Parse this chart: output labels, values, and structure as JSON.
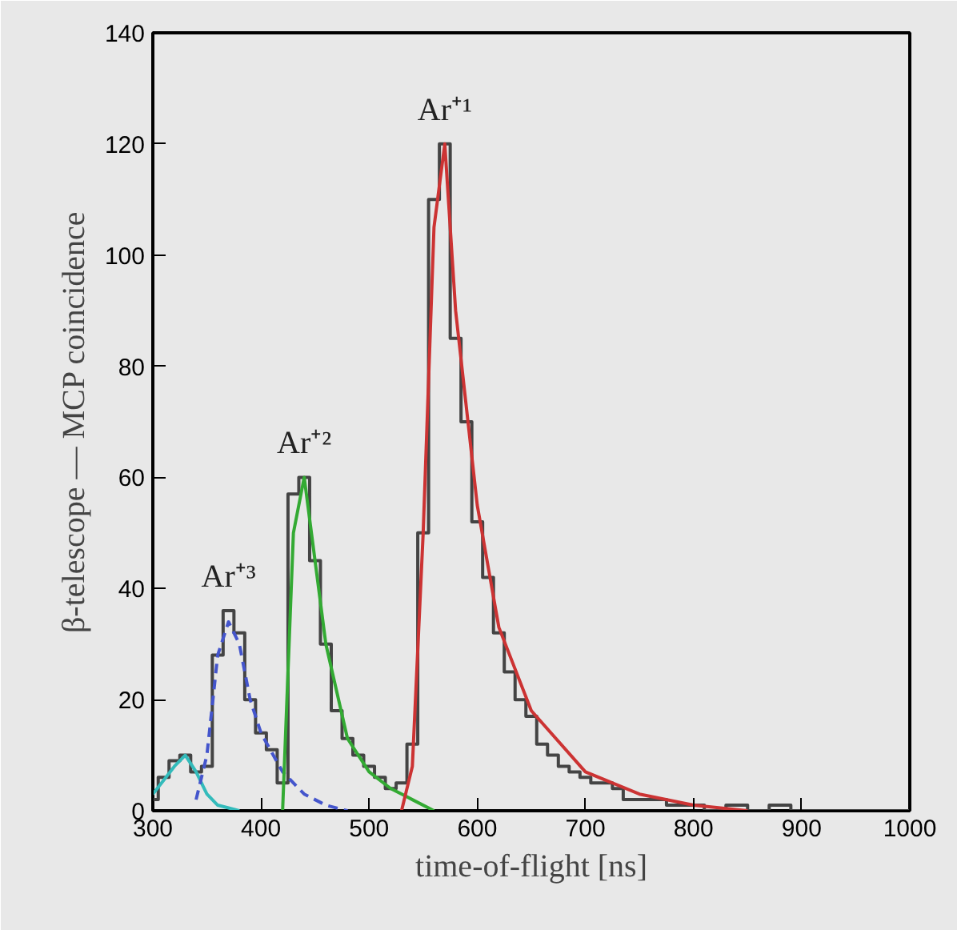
{
  "chart_data": {
    "type": "step",
    "xlabel": "time-of-flight [ns]",
    "ylabel": "β-telescope — MCP coincidence",
    "xlim": [
      300,
      1000
    ],
    "xticks": [
      300,
      400,
      500,
      600,
      700,
      800,
      900,
      1000
    ],
    "ylim": [
      0,
      140
    ],
    "yticks": [
      0,
      20,
      40,
      60,
      80,
      100,
      120,
      140
    ],
    "grid": false,
    "series": [
      {
        "color": "#444444",
        "x": [
          300,
          310,
          320,
          330,
          340,
          350,
          360,
          370,
          380,
          390,
          400,
          410,
          420,
          430,
          440,
          450,
          460,
          470,
          480,
          490,
          500,
          510,
          520,
          530,
          540,
          550,
          560,
          570,
          580,
          590,
          600,
          610,
          620,
          630,
          640,
          650,
          660,
          670,
          680,
          690,
          700,
          710,
          720,
          730,
          740,
          750,
          760,
          770,
          780,
          790,
          800,
          820,
          840,
          860,
          880,
          900,
          950,
          1000
        ],
        "values": [
          2,
          6,
          9,
          10,
          7,
          8,
          28,
          36,
          32,
          20,
          14,
          11,
          5,
          57,
          60,
          45,
          30,
          18,
          13,
          10,
          8,
          6,
          4,
          5,
          12,
          50,
          110,
          120,
          85,
          70,
          52,
          42,
          32,
          25,
          20,
          17,
          12,
          10,
          8,
          7,
          6,
          5,
          5,
          4,
          2,
          2,
          2,
          2,
          1,
          1,
          1,
          0,
          1,
          0,
          1,
          0,
          0,
          0
        ]
      },
      {
        "type": "line",
        "color": "#33bbbb",
        "x": [
          300,
          320,
          330,
          340,
          350,
          360,
          380
        ],
        "values": [
          3,
          8,
          10,
          7,
          3,
          1,
          0
        ]
      },
      {
        "type": "line",
        "color": "#4455cc",
        "line_style": "dashed",
        "x": [
          340,
          350,
          360,
          370,
          380,
          390,
          400,
          420,
          440,
          460,
          480
        ],
        "values": [
          2,
          10,
          28,
          34,
          30,
          20,
          14,
          7,
          3,
          1,
          0
        ]
      },
      {
        "type": "line",
        "color": "#33aa33",
        "x": [
          420,
          430,
          440,
          450,
          460,
          480,
          500,
          520,
          540,
          560
        ],
        "values": [
          0,
          50,
          60,
          45,
          30,
          13,
          7,
          4,
          2,
          0
        ]
      },
      {
        "type": "line",
        "color": "#cc3333",
        "x": [
          530,
          540,
          550,
          560,
          570,
          580,
          600,
          620,
          650,
          700,
          750,
          800,
          850
        ],
        "values": [
          0,
          8,
          50,
          105,
          120,
          90,
          55,
          33,
          18,
          7,
          3,
          1,
          0
        ]
      }
    ],
    "annotations": [
      {
        "text": "Ar⁺¹",
        "x": 570,
        "y": 120
      },
      {
        "text": "Ar⁺²",
        "x": 440,
        "y": 60
      },
      {
        "text": "Ar⁺³",
        "x": 370,
        "y": 36
      }
    ]
  }
}
